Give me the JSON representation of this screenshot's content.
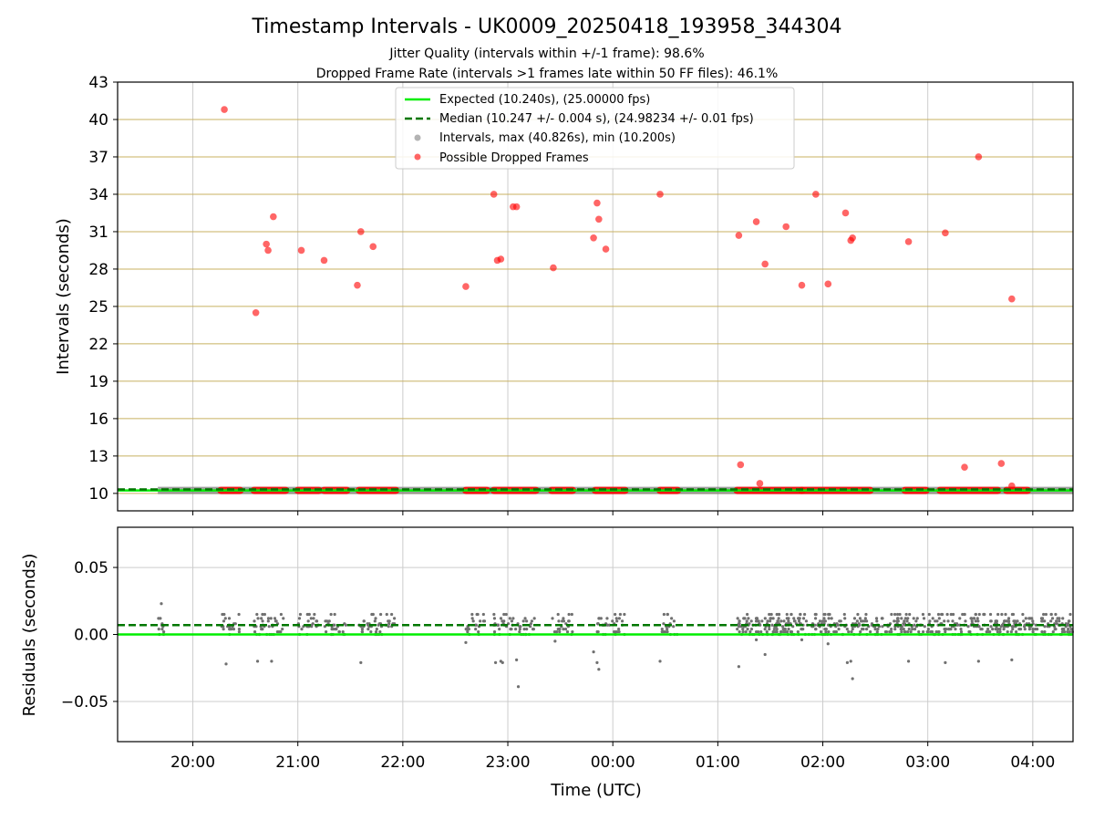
{
  "title": "Timestamp Intervals - UK0009_20250418_193958_344304",
  "subtitle_1": "Jitter Quality (intervals within +/-1 frame): 98.6%",
  "subtitle_2": "Dropped Frame Rate (intervals >1 frames late within 50 FF files): 46.1%",
  "colors": {
    "expected": "#00ee00",
    "median": "#007700",
    "intervals": "#808080",
    "dropped": "#ff0000",
    "hgrid_top": "#c8b060",
    "grid": "#cccccc"
  },
  "chart_data": [
    {
      "type": "scatter",
      "xlabel": "Time (UTC)",
      "ylabel": "Intervals (seconds)",
      "xlim": [
        "19:17",
        "04:23"
      ],
      "ylim": [
        8.6,
        43
      ],
      "y_ticks": [
        10,
        13,
        16,
        19,
        22,
        25,
        28,
        31,
        34,
        37,
        40,
        43
      ],
      "x_ticks": [
        "20:00",
        "21:00",
        "22:00",
        "23:00",
        "00:00",
        "01:00",
        "02:00",
        "03:00",
        "04:00"
      ],
      "grid": true,
      "legend_position": "top-center",
      "legend": [
        "Expected (10.240s), (25.00000 fps)",
        "Median (10.247 +/- 0.004 s), (24.98234 +/- 0.01 fps)",
        "Intervals, max (40.826s), min (10.200s)",
        "Possible Dropped Frames"
      ],
      "expected_interval": 10.24,
      "median_interval": 10.247,
      "interval_max": 40.826,
      "interval_min": 10.2,
      "intervals_band": {
        "x_start": "19:40",
        "x_end": "04:23",
        "y": 10.24
      },
      "dropped_cluster_ranges": [
        [
          "20:16",
          "20:27"
        ],
        [
          "20:35",
          "20:53"
        ],
        [
          "21:00",
          "21:12"
        ],
        [
          "21:15",
          "21:28"
        ],
        [
          "21:35",
          "21:56"
        ],
        [
          "22:36",
          "22:48"
        ],
        [
          "22:52",
          "23:16"
        ],
        [
          "23:25",
          "23:37"
        ],
        [
          "23:50",
          "00:07"
        ],
        [
          "00:27",
          "00:37"
        ],
        [
          "01:11",
          "01:48"
        ],
        [
          "01:48",
          "02:27"
        ],
        [
          "02:47",
          "02:59"
        ],
        [
          "03:07",
          "03:40"
        ],
        [
          "03:45",
          "03:57"
        ]
      ],
      "dropped_points": [
        {
          "x": "20:18",
          "y": 40.8
        },
        {
          "x": "20:36",
          "y": 24.5
        },
        {
          "x": "20:42",
          "y": 30.0
        },
        {
          "x": "20:43",
          "y": 29.5
        },
        {
          "x": "20:46",
          "y": 32.2
        },
        {
          "x": "21:02",
          "y": 29.5
        },
        {
          "x": "21:15",
          "y": 28.7
        },
        {
          "x": "21:34",
          "y": 26.7
        },
        {
          "x": "21:36",
          "y": 31.0
        },
        {
          "x": "21:43",
          "y": 29.8
        },
        {
          "x": "22:36",
          "y": 26.6
        },
        {
          "x": "22:52",
          "y": 34.0
        },
        {
          "x": "22:54",
          "y": 28.7
        },
        {
          "x": "22:56",
          "y": 28.8
        },
        {
          "x": "23:03",
          "y": 33.0
        },
        {
          "x": "23:05",
          "y": 33.0
        },
        {
          "x": "23:26",
          "y": 28.1
        },
        {
          "x": "23:49",
          "y": 30.5
        },
        {
          "x": "23:51",
          "y": 33.3
        },
        {
          "x": "23:52",
          "y": 32.0
        },
        {
          "x": "23:56",
          "y": 29.6
        },
        {
          "x": "00:27",
          "y": 34.0
        },
        {
          "x": "01:12",
          "y": 30.7
        },
        {
          "x": "01:13",
          "y": 12.3
        },
        {
          "x": "01:22",
          "y": 31.8
        },
        {
          "x": "01:24",
          "y": 10.8
        },
        {
          "x": "01:27",
          "y": 28.4
        },
        {
          "x": "01:39",
          "y": 31.4
        },
        {
          "x": "01:48",
          "y": 26.7
        },
        {
          "x": "01:56",
          "y": 34.0
        },
        {
          "x": "02:03",
          "y": 26.8
        },
        {
          "x": "02:13",
          "y": 32.5
        },
        {
          "x": "02:16",
          "y": 30.3
        },
        {
          "x": "02:17",
          "y": 30.5
        },
        {
          "x": "02:49",
          "y": 30.2
        },
        {
          "x": "03:10",
          "y": 30.9
        },
        {
          "x": "03:21",
          "y": 12.1
        },
        {
          "x": "03:29",
          "y": 37.0
        },
        {
          "x": "03:42",
          "y": 12.4
        },
        {
          "x": "03:48",
          "y": 25.6
        },
        {
          "x": "03:48",
          "y": 10.6
        }
      ]
    },
    {
      "type": "scatter",
      "xlabel": "Time (UTC)",
      "ylabel": "Residuals (seconds)",
      "xlim": [
        "19:17",
        "04:23"
      ],
      "ylim": [
        -0.08,
        0.08
      ],
      "y_ticks": [
        "0.05",
        "0.00",
        "−0.05"
      ],
      "x_ticks": [
        "20:00",
        "21:00",
        "22:00",
        "23:00",
        "00:00",
        "01:00",
        "02:00",
        "03:00",
        "04:00"
      ],
      "grid": true,
      "expected_residual": 0.0,
      "median_residual": 0.007,
      "residual_clusters": [
        [
          "19:40",
          "19:45"
        ],
        [
          "20:16",
          "20:27"
        ],
        [
          "20:35",
          "20:53"
        ],
        [
          "21:00",
          "21:12"
        ],
        [
          "21:15",
          "21:28"
        ],
        [
          "21:35",
          "21:56"
        ],
        [
          "22:36",
          "22:48"
        ],
        [
          "22:52",
          "23:16"
        ],
        [
          "23:25",
          "23:37"
        ],
        [
          "23:50",
          "00:07"
        ],
        [
          "00:27",
          "00:37"
        ],
        [
          "01:11",
          "04:23"
        ]
      ],
      "residual_outliers": [
        {
          "x": "19:42",
          "y": 0.023
        },
        {
          "x": "20:19",
          "y": -0.022
        },
        {
          "x": "20:37",
          "y": -0.02
        },
        {
          "x": "20:45",
          "y": -0.02
        },
        {
          "x": "21:36",
          "y": -0.021
        },
        {
          "x": "22:36",
          "y": -0.006
        },
        {
          "x": "22:53",
          "y": -0.021
        },
        {
          "x": "22:56",
          "y": -0.02
        },
        {
          "x": "22:57",
          "y": -0.021
        },
        {
          "x": "23:05",
          "y": -0.019
        },
        {
          "x": "23:06",
          "y": -0.039
        },
        {
          "x": "23:27",
          "y": -0.005
        },
        {
          "x": "23:49",
          "y": -0.013
        },
        {
          "x": "23:51",
          "y": -0.021
        },
        {
          "x": "23:52",
          "y": -0.026
        },
        {
          "x": "00:27",
          "y": -0.02
        },
        {
          "x": "01:12",
          "y": -0.024
        },
        {
          "x": "01:22",
          "y": -0.004
        },
        {
          "x": "01:27",
          "y": -0.015
        },
        {
          "x": "01:48",
          "y": -0.004
        },
        {
          "x": "02:03",
          "y": -0.007
        },
        {
          "x": "02:14",
          "y": -0.021
        },
        {
          "x": "02:16",
          "y": -0.02
        },
        {
          "x": "02:17",
          "y": -0.033
        },
        {
          "x": "02:49",
          "y": -0.02
        },
        {
          "x": "03:10",
          "y": -0.021
        },
        {
          "x": "03:29",
          "y": -0.02
        },
        {
          "x": "03:48",
          "y": -0.019
        }
      ]
    }
  ]
}
